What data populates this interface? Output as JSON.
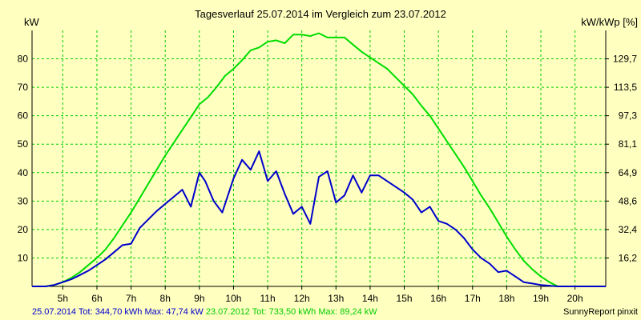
{
  "chart_data": {
    "type": "line",
    "title": "Tagesverlauf 25.07.2014 im Vergleich zum 23.07.2012",
    "ylabel_left": "kW",
    "ylabel_right": "kW/kWp [%]",
    "xlim": [
      4.1,
      20.9
    ],
    "ylim": [
      0,
      90
    ],
    "x_ticks": [
      {
        "x": 5,
        "label": "5h"
      },
      {
        "x": 6,
        "label": "6h"
      },
      {
        "x": 7,
        "label": "7h"
      },
      {
        "x": 8,
        "label": "8h"
      },
      {
        "x": 9,
        "label": "9h"
      },
      {
        "x": 10,
        "label": "10h"
      },
      {
        "x": 11,
        "label": "11h"
      },
      {
        "x": 12,
        "label": "12h"
      },
      {
        "x": 13,
        "label": "13h"
      },
      {
        "x": 14,
        "label": "14h"
      },
      {
        "x": 15,
        "label": "15h"
      },
      {
        "x": 16,
        "label": "16h"
      },
      {
        "x": 17,
        "label": "17h"
      },
      {
        "x": 18,
        "label": "18h"
      },
      {
        "x": 19,
        "label": "19h"
      },
      {
        "x": 20,
        "label": "20h"
      }
    ],
    "y_ticks_left": [
      {
        "y": 10,
        "label": "10"
      },
      {
        "y": 20,
        "label": "20"
      },
      {
        "y": 30,
        "label": "30"
      },
      {
        "y": 40,
        "label": "40"
      },
      {
        "y": 50,
        "label": "50"
      },
      {
        "y": 60,
        "label": "60"
      },
      {
        "y": 70,
        "label": "70"
      },
      {
        "y": 80,
        "label": "80"
      }
    ],
    "y_ticks_right": [
      {
        "y": 10,
        "label": "16,2"
      },
      {
        "y": 20,
        "label": "32,4"
      },
      {
        "y": 30,
        "label": "48,6"
      },
      {
        "y": 40,
        "label": "64,9"
      },
      {
        "y": 50,
        "label": "81,1"
      },
      {
        "y": 60,
        "label": "97,3"
      },
      {
        "y": 70,
        "label": "113,5"
      },
      {
        "y": 80,
        "label": "129,7"
      }
    ],
    "grid": true,
    "series": [
      {
        "name": "25.07.2014",
        "color": "#0000cc",
        "x": [
          4.1,
          4.5,
          4.75,
          5.0,
          5.25,
          5.5,
          5.75,
          6.0,
          6.25,
          6.5,
          6.75,
          7.0,
          7.25,
          7.5,
          7.75,
          8.0,
          8.25,
          8.5,
          8.75,
          9.0,
          9.17,
          9.42,
          9.67,
          10.0,
          10.25,
          10.5,
          10.75,
          11.0,
          11.25,
          11.5,
          11.75,
          12.0,
          12.25,
          12.5,
          12.75,
          13.0,
          13.25,
          13.5,
          13.75,
          14.0,
          14.25,
          14.5,
          14.75,
          15.0,
          15.25,
          15.5,
          15.75,
          16.0,
          16.25,
          16.5,
          16.75,
          17.0,
          17.25,
          17.5,
          17.75,
          18.0,
          18.25,
          18.5,
          18.75,
          19.0,
          19.5,
          20.0,
          20.9
        ],
        "values": [
          0,
          0,
          0.5,
          1.5,
          2.5,
          4,
          5.5,
          7.5,
          9.5,
          12,
          14.5,
          15,
          20.5,
          23.5,
          26.5,
          29,
          31.5,
          34,
          28,
          40,
          37,
          30,
          26,
          38,
          44.5,
          41,
          47.5,
          37,
          40.5,
          32.5,
          25.5,
          28,
          22,
          38.5,
          40.5,
          29.5,
          32,
          39,
          33,
          39,
          39,
          37,
          35,
          33,
          30.5,
          26,
          28,
          23,
          22,
          20,
          17,
          13,
          10,
          8,
          5,
          5.5,
          3.5,
          1.5,
          1,
          0.5,
          0,
          0,
          0
        ]
      },
      {
        "name": "23.07.2012",
        "color": "#00dd00",
        "x": [
          4.1,
          4.5,
          4.75,
          5.0,
          5.25,
          5.5,
          5.75,
          6.0,
          6.25,
          6.5,
          6.75,
          7.0,
          7.25,
          7.5,
          7.75,
          8.0,
          8.25,
          8.5,
          8.75,
          9.0,
          9.25,
          9.5,
          9.75,
          10.0,
          10.25,
          10.5,
          10.75,
          11.0,
          11.25,
          11.5,
          11.75,
          12.0,
          12.25,
          12.5,
          12.75,
          13.0,
          13.25,
          13.5,
          13.75,
          14.0,
          14.25,
          14.5,
          14.75,
          15.0,
          15.25,
          15.5,
          15.75,
          16.0,
          16.25,
          16.5,
          16.75,
          17.0,
          17.25,
          17.5,
          17.75,
          18.0,
          18.25,
          18.5,
          18.75,
          19.0,
          19.25,
          19.5,
          19.75,
          20.0,
          20.9
        ],
        "values": [
          0,
          0,
          0.5,
          1.5,
          3,
          5,
          7.5,
          10,
          13,
          17,
          21.5,
          26,
          31,
          36,
          41,
          46,
          50.5,
          55,
          59.5,
          64,
          66.5,
          70,
          74,
          76.5,
          79.5,
          83,
          84,
          86,
          86.5,
          85.5,
          88.5,
          88.5,
          88,
          89,
          87.5,
          87.5,
          87.5,
          85,
          82.5,
          80.5,
          78.5,
          76.5,
          73.5,
          70.5,
          67.5,
          63.5,
          60,
          55.5,
          51,
          46.5,
          42,
          37,
          32,
          27.5,
          22.5,
          17.5,
          13,
          9,
          6,
          3.5,
          1.5,
          0,
          0,
          0,
          0
        ]
      }
    ]
  },
  "footer": {
    "series1_text": "25.07.2014 Tot: 344,70 kWh Max: 47,74 kW",
    "series2_text": "23.07.2012 Tot: 733,50 kWh Max: 89,24 kW",
    "credit": "SunnyReport pinxit"
  },
  "colors": {
    "background": "#ffffc0",
    "grid": "#00cc00",
    "axis": "#000000"
  }
}
